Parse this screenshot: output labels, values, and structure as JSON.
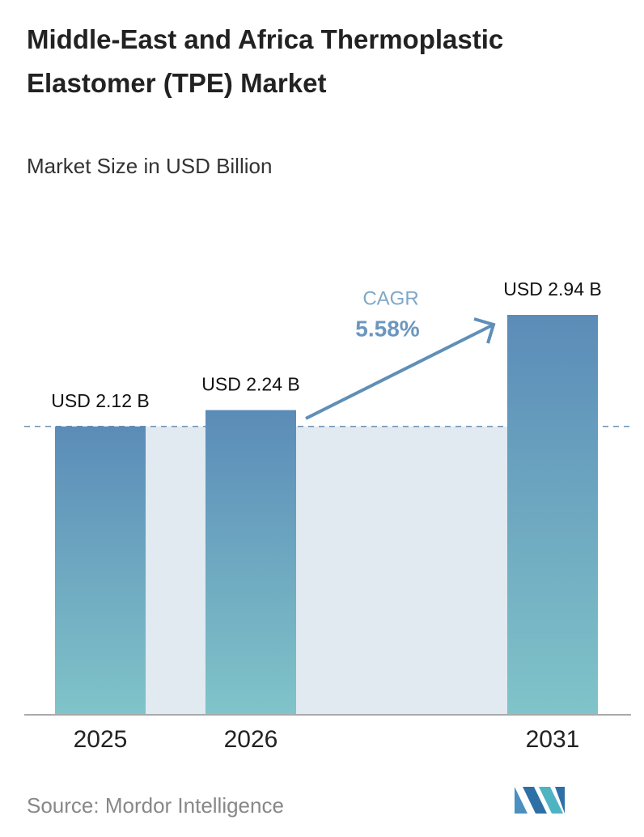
{
  "chart_data": {
    "type": "bar",
    "title": "Middle-East and Africa Thermoplastic Elastomer (TPE) Market",
    "subtitle": "Market Size in USD Billion",
    "categories": [
      "2025",
      "2026",
      "2031"
    ],
    "values": [
      2.12,
      2.24,
      2.94
    ],
    "value_labels": [
      "USD 2.12 B",
      "USD 2.24 B",
      "USD 2.94 B"
    ],
    "annotations": {
      "cagr_label": "CAGR",
      "cagr_value": "5.58%"
    },
    "source": "Source: Mordor Intelligence"
  }
}
